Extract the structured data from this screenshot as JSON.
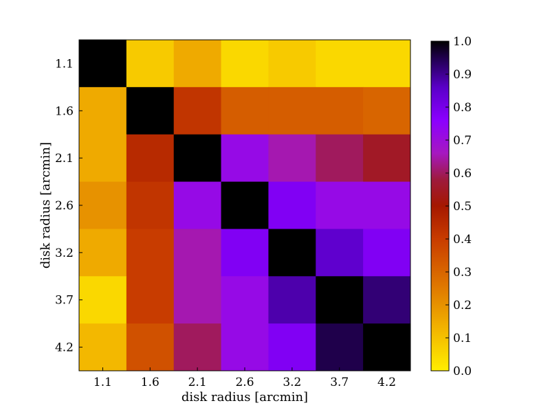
{
  "chart_data": {
    "type": "heatmap",
    "xlabel": "disk radius [arcmin]",
    "ylabel": "disk radius [arcmin]",
    "x_categories": [
      "1.1",
      "1.6",
      "2.1",
      "2.6",
      "3.2",
      "3.7",
      "4.2"
    ],
    "y_categories": [
      "1.1",
      "1.6",
      "2.1",
      "2.6",
      "3.2",
      "3.7",
      "4.2"
    ],
    "values": [
      [
        1.0,
        0.08,
        0.15,
        0.05,
        0.08,
        0.05,
        0.05
      ],
      [
        0.15,
        1.0,
        0.42,
        0.32,
        0.32,
        0.32,
        0.3
      ],
      [
        0.15,
        0.45,
        1.0,
        0.72,
        0.65,
        0.6,
        0.55
      ],
      [
        0.2,
        0.42,
        0.72,
        1.0,
        0.78,
        0.72,
        0.72
      ],
      [
        0.15,
        0.4,
        0.65,
        0.78,
        1.0,
        0.85,
        0.78
      ],
      [
        0.05,
        0.4,
        0.65,
        0.72,
        0.88,
        1.0,
        0.92
      ],
      [
        0.12,
        0.35,
        0.6,
        0.72,
        0.78,
        0.95,
        1.0
      ]
    ],
    "colorbar": {
      "range": [
        0.0,
        1.0
      ],
      "ticks": [
        "0.0",
        "0.1",
        "0.2",
        "0.3",
        "0.4",
        "0.5",
        "0.6",
        "0.7",
        "0.8",
        "0.9",
        "1.0"
      ],
      "colors": [
        "#ffee00",
        "#f0a500",
        "#d04800",
        "#9e1a3c",
        "#a618c0",
        "#8b00ff",
        "#4b00b0",
        "#000000"
      ]
    }
  }
}
